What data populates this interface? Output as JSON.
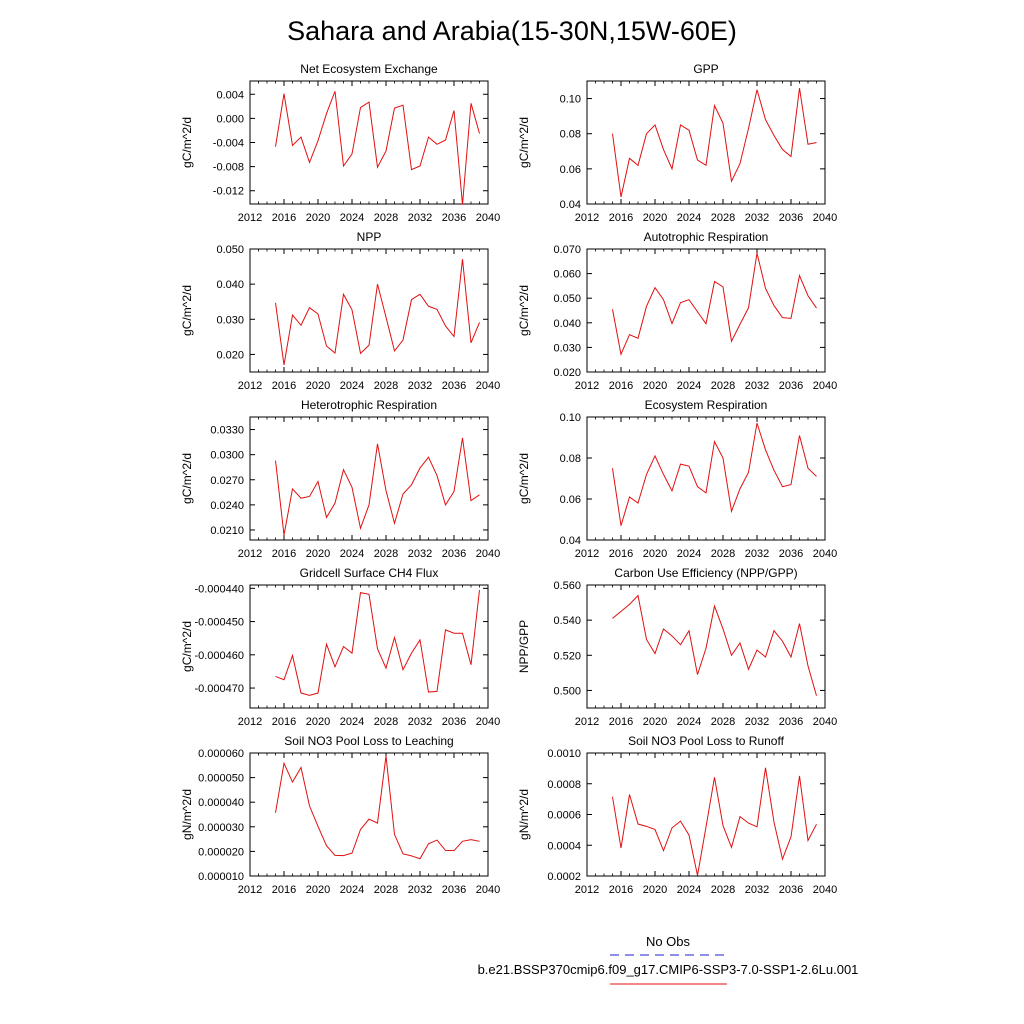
{
  "page_title": "Sahara and Arabia(15-30N,15W-60E)",
  "legend": {
    "obs_label": "No Obs",
    "model_label": "b.e21.BSSP370cmip6.f09_g17.CMIP6-SSP3-7.0-SSP1-2.6Lu.001",
    "obs_color": "#4a4adf",
    "model_color": "#e01010"
  },
  "chart_data": [
    {
      "type": "line",
      "title": "Net Ecosystem Exchange",
      "ylabel": "gC/m^2/d",
      "xlim": [
        2012,
        2040
      ],
      "ylim": [
        -0.0142,
        0.0062
      ],
      "x_ticks": [
        "2012",
        "2016",
        "2020",
        "2024",
        "2028",
        "2032",
        "2036",
        "2040"
      ],
      "y_ticks": [
        {
          "v": 0.004,
          "t": "0.004"
        },
        {
          "v": 0.0,
          "t": "0.000"
        },
        {
          "v": -0.004,
          "t": "-0.004"
        },
        {
          "v": -0.008,
          "t": "-0.008"
        },
        {
          "v": -0.012,
          "t": "-0.012"
        }
      ],
      "series": [
        {
          "x": [
            2015,
            2016,
            2017,
            2018,
            2019,
            2020,
            2021,
            2022,
            2023,
            2024,
            2025,
            2026,
            2027,
            2028,
            2029,
            2030,
            2031,
            2032,
            2033,
            2034,
            2035,
            2036,
            2037,
            2038,
            2039
          ],
          "values": [
            -0.0047,
            0.0041,
            -0.0045,
            -0.0031,
            -0.0073,
            -0.0037,
            0.0008,
            0.0045,
            -0.0079,
            -0.0059,
            0.0018,
            0.0027,
            -0.0081,
            -0.0054,
            0.0017,
            0.0022,
            -0.0085,
            -0.0079,
            -0.0031,
            -0.0043,
            -0.0036,
            0.0013,
            -0.0143,
            0.0025,
            -0.0025
          ]
        }
      ]
    },
    {
      "type": "line",
      "title": "GPP",
      "ylabel": "gC/m^2/d",
      "xlim": [
        2012,
        2040
      ],
      "ylim": [
        0.04,
        0.11
      ],
      "x_ticks": [
        "2012",
        "2016",
        "2020",
        "2024",
        "2028",
        "2032",
        "2036",
        "2040"
      ],
      "y_ticks": [
        {
          "v": 0.04,
          "t": "0.04"
        },
        {
          "v": 0.06,
          "t": "0.06"
        },
        {
          "v": 0.08,
          "t": "0.08"
        },
        {
          "v": 0.1,
          "t": "0.10"
        }
      ],
      "series": [
        {
          "x": [
            2015,
            2016,
            2017,
            2018,
            2019,
            2020,
            2021,
            2022,
            2023,
            2024,
            2025,
            2026,
            2027,
            2028,
            2029,
            2030,
            2031,
            2032,
            2033,
            2034,
            2035,
            2036,
            2037,
            2038,
            2039
          ],
          "values": [
            0.08,
            0.044,
            0.066,
            0.062,
            0.08,
            0.085,
            0.071,
            0.06,
            0.085,
            0.082,
            0.065,
            0.062,
            0.096,
            0.086,
            0.053,
            0.063,
            0.083,
            0.105,
            0.088,
            0.079,
            0.071,
            0.067,
            0.106,
            0.074,
            0.075
          ]
        }
      ]
    },
    {
      "type": "line",
      "title": "NPP",
      "ylabel": "gC/m^2/d",
      "xlim": [
        2012,
        2040
      ],
      "ylim": [
        0.015,
        0.05
      ],
      "x_ticks": [
        "2012",
        "2016",
        "2020",
        "2024",
        "2028",
        "2032",
        "2036",
        "2040"
      ],
      "y_ticks": [
        {
          "v": 0.02,
          "t": "0.020"
        },
        {
          "v": 0.03,
          "t": "0.030"
        },
        {
          "v": 0.04,
          "t": "0.040"
        },
        {
          "v": 0.05,
          "t": "0.050"
        }
      ],
      "series": [
        {
          "x": [
            2015,
            2016,
            2017,
            2018,
            2019,
            2020,
            2021,
            2022,
            2023,
            2024,
            2025,
            2026,
            2027,
            2028,
            2029,
            2030,
            2031,
            2032,
            2033,
            2034,
            2035,
            2036,
            2037,
            2038,
            2039
          ],
          "values": [
            0.0347,
            0.017,
            0.0312,
            0.0283,
            0.0333,
            0.0315,
            0.0224,
            0.0204,
            0.0371,
            0.0327,
            0.0203,
            0.0226,
            0.04,
            0.0306,
            0.021,
            0.0241,
            0.0356,
            0.0371,
            0.0337,
            0.0328,
            0.0281,
            0.0251,
            0.0471,
            0.0233,
            0.0291
          ]
        }
      ]
    },
    {
      "type": "line",
      "title": "Autotrophic Respiration",
      "ylabel": "gC/m^2/d",
      "xlim": [
        2012,
        2040
      ],
      "ylim": [
        0.02,
        0.07
      ],
      "x_ticks": [
        "2012",
        "2016",
        "2020",
        "2024",
        "2028",
        "2032",
        "2036",
        "2040"
      ],
      "y_ticks": [
        {
          "v": 0.02,
          "t": "0.020"
        },
        {
          "v": 0.03,
          "t": "0.030"
        },
        {
          "v": 0.04,
          "t": "0.040"
        },
        {
          "v": 0.05,
          "t": "0.050"
        },
        {
          "v": 0.06,
          "t": "0.060"
        },
        {
          "v": 0.07,
          "t": "0.070"
        }
      ],
      "series": [
        {
          "x": [
            2015,
            2016,
            2017,
            2018,
            2019,
            2020,
            2021,
            2022,
            2023,
            2024,
            2025,
            2026,
            2027,
            2028,
            2029,
            2030,
            2031,
            2032,
            2033,
            2034,
            2035,
            2036,
            2037,
            2038,
            2039
          ],
          "values": [
            0.0455,
            0.0272,
            0.0352,
            0.0337,
            0.0467,
            0.0543,
            0.0494,
            0.0397,
            0.0482,
            0.0494,
            0.0445,
            0.0396,
            0.0568,
            0.0546,
            0.0325,
            0.0394,
            0.0461,
            0.0683,
            0.054,
            0.047,
            0.0421,
            0.0418,
            0.0592,
            0.051,
            0.046
          ]
        }
      ]
    },
    {
      "type": "line",
      "title": "Heterotrophic Respiration",
      "ylabel": "gC/m^2/d",
      "xlim": [
        2012,
        2040
      ],
      "ylim": [
        0.0198,
        0.0345
      ],
      "x_ticks": [
        "2012",
        "2016",
        "2020",
        "2024",
        "2028",
        "2032",
        "2036",
        "2040"
      ],
      "y_ticks": [
        {
          "v": 0.021,
          "t": "0.0210"
        },
        {
          "v": 0.024,
          "t": "0.0240"
        },
        {
          "v": 0.027,
          "t": "0.0270"
        },
        {
          "v": 0.03,
          "t": "0.0300"
        },
        {
          "v": 0.033,
          "t": "0.0330"
        }
      ],
      "series": [
        {
          "x": [
            2015,
            2016,
            2017,
            2018,
            2019,
            2020,
            2021,
            2022,
            2023,
            2024,
            2025,
            2026,
            2027,
            2028,
            2029,
            2030,
            2031,
            2032,
            2033,
            2034,
            2035,
            2036,
            2037,
            2038,
            2039
          ],
          "values": [
            0.0293,
            0.0204,
            0.0259,
            0.0248,
            0.025,
            0.0268,
            0.0225,
            0.0242,
            0.0282,
            0.0261,
            0.0212,
            0.024,
            0.0313,
            0.0257,
            0.0218,
            0.0253,
            0.0264,
            0.0284,
            0.0297,
            0.0275,
            0.024,
            0.0256,
            0.032,
            0.0245,
            0.0252
          ]
        }
      ]
    },
    {
      "type": "line",
      "title": "Ecosystem Respiration",
      "ylabel": "gC/m^2/d",
      "xlim": [
        2012,
        2040
      ],
      "ylim": [
        0.04,
        0.1
      ],
      "x_ticks": [
        "2012",
        "2016",
        "2020",
        "2024",
        "2028",
        "2032",
        "2036",
        "2040"
      ],
      "y_ticks": [
        {
          "v": 0.04,
          "t": "0.04"
        },
        {
          "v": 0.06,
          "t": "0.06"
        },
        {
          "v": 0.08,
          "t": "0.08"
        },
        {
          "v": 0.1,
          "t": "0.10"
        }
      ],
      "series": [
        {
          "x": [
            2015,
            2016,
            2017,
            2018,
            2019,
            2020,
            2021,
            2022,
            2023,
            2024,
            2025,
            2026,
            2027,
            2028,
            2029,
            2030,
            2031,
            2032,
            2033,
            2034,
            2035,
            2036,
            2037,
            2038,
            2039
          ],
          "values": [
            0.075,
            0.047,
            0.061,
            0.058,
            0.072,
            0.081,
            0.072,
            0.064,
            0.077,
            0.076,
            0.066,
            0.063,
            0.088,
            0.08,
            0.054,
            0.065,
            0.073,
            0.097,
            0.084,
            0.074,
            0.066,
            0.067,
            0.091,
            0.075,
            0.071
          ]
        }
      ]
    },
    {
      "type": "line",
      "title": "Gridcell Surface CH4 Flux",
      "ylabel": "gC/m^2/d",
      "xlim": [
        2012,
        2040
      ],
      "ylim": [
        -0.000476,
        -0.000439
      ],
      "x_ticks": [
        "2012",
        "2016",
        "2020",
        "2024",
        "2028",
        "2032",
        "2036",
        "2040"
      ],
      "y_ticks": [
        {
          "v": -0.00044,
          "t": "-0.000440"
        },
        {
          "v": -0.00045,
          "t": "-0.000450"
        },
        {
          "v": -0.00046,
          "t": "-0.000460"
        },
        {
          "v": -0.00047,
          "t": "-0.000470"
        }
      ],
      "series": [
        {
          "x": [
            2015,
            2016,
            2017,
            2018,
            2019,
            2020,
            2021,
            2022,
            2023,
            2024,
            2025,
            2026,
            2027,
            2028,
            2029,
            2030,
            2031,
            2032,
            2033,
            2034,
            2035,
            2036,
            2037,
            2038,
            2039
          ],
          "values": [
            -0.0004665,
            -0.0004675,
            -0.0004602,
            -0.0004715,
            -0.0004722,
            -0.0004715,
            -0.0004568,
            -0.0004636,
            -0.0004575,
            -0.0004595,
            -0.0004413,
            -0.0004418,
            -0.0004582,
            -0.000464,
            -0.0004548,
            -0.0004645,
            -0.0004595,
            -0.0004555,
            -0.0004712,
            -0.000471,
            -0.0004525,
            -0.0004535,
            -0.0004535,
            -0.000463,
            -0.0004405
          ]
        }
      ]
    },
    {
      "type": "line",
      "title": "Carbon Use Efficiency (NPP/GPP)",
      "ylabel": "NPP/GPP",
      "xlim": [
        2012,
        2040
      ],
      "ylim": [
        0.49,
        0.56
      ],
      "x_ticks": [
        "2012",
        "2016",
        "2020",
        "2024",
        "2028",
        "2032",
        "2036",
        "2040"
      ],
      "y_ticks": [
        {
          "v": 0.5,
          "t": "0.500"
        },
        {
          "v": 0.52,
          "t": "0.520"
        },
        {
          "v": 0.54,
          "t": "0.540"
        },
        {
          "v": 0.56,
          "t": "0.560"
        }
      ],
      "series": [
        {
          "x": [
            2015,
            2016,
            2017,
            2018,
            2019,
            2020,
            2021,
            2022,
            2023,
            2024,
            2025,
            2026,
            2027,
            2028,
            2029,
            2030,
            2031,
            2032,
            2033,
            2034,
            2035,
            2036,
            2037,
            2038,
            2039
          ],
          "values": [
            0.541,
            0.545,
            0.549,
            0.554,
            0.529,
            0.521,
            0.535,
            0.531,
            0.526,
            0.534,
            0.509,
            0.524,
            0.548,
            0.535,
            0.52,
            0.527,
            0.512,
            0.523,
            0.519,
            0.534,
            0.528,
            0.519,
            0.538,
            0.514,
            0.497
          ]
        }
      ]
    },
    {
      "type": "line",
      "title": "Soil NO3 Pool Loss to Leaching",
      "ylabel": "gN/m^2/d",
      "xlim": [
        2012,
        2040
      ],
      "ylim": [
        1e-05,
        6e-05
      ],
      "x_ticks": [
        "2012",
        "2016",
        "2020",
        "2024",
        "2028",
        "2032",
        "2036",
        "2040"
      ],
      "y_ticks": [
        {
          "v": 1e-05,
          "t": "0.000010"
        },
        {
          "v": 2e-05,
          "t": "0.000020"
        },
        {
          "v": 3e-05,
          "t": "0.000030"
        },
        {
          "v": 4e-05,
          "t": "0.000040"
        },
        {
          "v": 5e-05,
          "t": "0.000050"
        },
        {
          "v": 6e-05,
          "t": "0.000060"
        }
      ],
      "series": [
        {
          "x": [
            2015,
            2016,
            2017,
            2018,
            2019,
            2020,
            2021,
            2022,
            2023,
            2024,
            2025,
            2026,
            2027,
            2028,
            2029,
            2030,
            2031,
            2032,
            2033,
            2034,
            2035,
            2036,
            2037,
            2038,
            2039
          ],
          "values": [
            3.57e-05,
            5.58e-05,
            4.82e-05,
            5.41e-05,
            3.85e-05,
            3.02e-05,
            2.23e-05,
            1.84e-05,
            1.83e-05,
            1.93e-05,
            2.89e-05,
            3.31e-05,
            3.15e-05,
            5.88e-05,
            2.69e-05,
            1.9e-05,
            1.82e-05,
            1.7e-05,
            2.31e-05,
            2.46e-05,
            2.04e-05,
            2.03e-05,
            2.41e-05,
            2.48e-05,
            2.41e-05
          ]
        }
      ]
    },
    {
      "type": "line",
      "title": "Soil NO3 Pool Loss to Runoff",
      "ylabel": "gN/m^2/d",
      "xlim": [
        2012,
        2040
      ],
      "ylim": [
        0.0002,
        0.001
      ],
      "x_ticks": [
        "2012",
        "2016",
        "2020",
        "2024",
        "2028",
        "2032",
        "2036",
        "2040"
      ],
      "y_ticks": [
        {
          "v": 0.0002,
          "t": "0.0002"
        },
        {
          "v": 0.0004,
          "t": "0.0004"
        },
        {
          "v": 0.0006,
          "t": "0.0006"
        },
        {
          "v": 0.0008,
          "t": "0.0008"
        },
        {
          "v": 0.001,
          "t": "0.0010"
        }
      ],
      "series": [
        {
          "x": [
            2015,
            2016,
            2017,
            2018,
            2019,
            2020,
            2021,
            2022,
            2023,
            2024,
            2025,
            2026,
            2027,
            2028,
            2029,
            2030,
            2031,
            2032,
            2033,
            2034,
            2035,
            2036,
            2037,
            2038,
            2039
          ],
          "values": [
            0.000715,
            0.000382,
            0.00073,
            0.000538,
            0.000523,
            0.000502,
            0.000365,
            0.000513,
            0.000557,
            0.000466,
            0.000204,
            0.000519,
            0.000842,
            0.000528,
            0.000386,
            0.000586,
            0.000544,
            0.00052,
            0.000904,
            0.00055,
            0.00031,
            0.000455,
            0.000851,
            0.000431,
            0.000537
          ]
        }
      ]
    }
  ]
}
